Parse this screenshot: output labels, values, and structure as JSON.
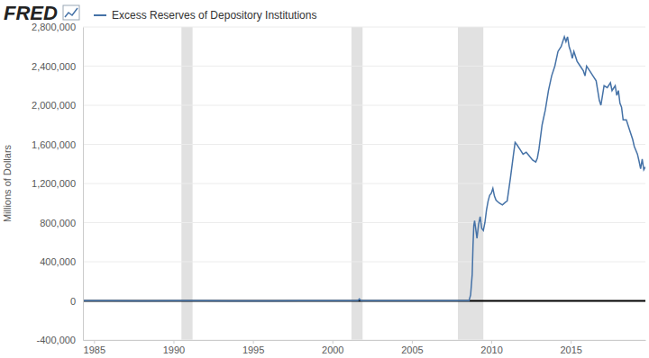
{
  "chart_data": {
    "type": "line",
    "logo": "FRED",
    "y_label": "Millions of Dollars",
    "grid": true,
    "xlim": [
      1984.3,
      2019.7
    ],
    "xticks": [
      1985,
      1990,
      1995,
      2000,
      2005,
      2010,
      2015
    ],
    "ylim": [
      -400000,
      2800000
    ],
    "yticks": [
      {
        "value": -400000,
        "label": "-400,000"
      },
      0,
      {
        "value": 400000,
        "label": "400,000"
      },
      {
        "value": 800000,
        "label": "800,000"
      },
      {
        "value": 1200000,
        "label": "1,200,000"
      },
      {
        "value": 1600000,
        "label": "1,600,000"
      },
      {
        "value": 2000000,
        "label": "2,000,000"
      },
      {
        "value": 2400000,
        "label": "2,400,000"
      },
      {
        "value": 2800000,
        "label": "2,800,000"
      }
    ],
    "recessions": [
      {
        "start": 1990.5,
        "end": 1991.2
      },
      {
        "start": 2001.2,
        "end": 2001.9
      },
      {
        "start": 2007.9,
        "end": 2009.5
      }
    ],
    "x": [
      1984.3,
      1986,
      1988,
      1990,
      1992,
      1994,
      1996,
      1998,
      2000,
      2001.6,
      2001.7,
      2001.8,
      2003,
      2005,
      2007,
      2008.6,
      2008.7,
      2008.8,
      2008.85,
      2008.9,
      2008.95,
      2009.0,
      2009.1,
      2009.2,
      2009.3,
      2009.4,
      2009.5,
      2009.6,
      2009.7,
      2009.8,
      2009.9,
      2010.0,
      2010.1,
      2010.2,
      2010.3,
      2010.5,
      2010.7,
      2010.9,
      2011.0,
      2011.2,
      2011.4,
      2011.5,
      2011.6,
      2011.8,
      2012.0,
      2012.2,
      2012.4,
      2012.6,
      2012.8,
      2012.9,
      2013.0,
      2013.2,
      2013.4,
      2013.6,
      2013.8,
      2014.0,
      2014.2,
      2014.4,
      2014.6,
      2014.7,
      2014.8,
      2014.9,
      2015.0,
      2015.1,
      2015.2,
      2015.4,
      2015.6,
      2015.8,
      2015.9,
      2016.0,
      2016.2,
      2016.4,
      2016.6,
      2016.8,
      2016.9,
      2017.0,
      2017.1,
      2017.3,
      2017.5,
      2017.6,
      2017.8,
      2017.9,
      2018.0,
      2018.1,
      2018.2,
      2018.3,
      2018.5,
      2018.7,
      2018.9,
      2019.0,
      2019.2,
      2019.3,
      2019.4,
      2019.5,
      2019.6,
      2019.7
    ],
    "series": [
      {
        "name": "Excess Reserves of Depository Institutions",
        "color": "#4572a7",
        "values": [
          1200,
          1500,
          1100,
          1300,
          1200,
          1100,
          1000,
          1300,
          1200,
          1300,
          19000,
          1400,
          1500,
          1600,
          1700,
          2000,
          60000,
          270000,
          560000,
          770000,
          820000,
          760000,
          640000,
          780000,
          860000,
          740000,
          720000,
          800000,
          930000,
          1020000,
          1080000,
          1100000,
          1150000,
          1070000,
          1030000,
          1000000,
          980000,
          1010000,
          1020000,
          1250000,
          1500000,
          1620000,
          1600000,
          1550000,
          1500000,
          1520000,
          1480000,
          1440000,
          1420000,
          1460000,
          1550000,
          1800000,
          1950000,
          2150000,
          2300000,
          2400000,
          2550000,
          2600000,
          2700000,
          2650000,
          2700000,
          2600000,
          2550000,
          2480000,
          2550000,
          2450000,
          2400000,
          2350000,
          2300000,
          2400000,
          2350000,
          2300000,
          2250000,
          2050000,
          2000000,
          2100000,
          2200000,
          2180000,
          2230000,
          2150000,
          2200000,
          2100000,
          2150000,
          2020000,
          1980000,
          1850000,
          1850000,
          1750000,
          1650000,
          1580000,
          1500000,
          1430000,
          1350000,
          1450000,
          1340000,
          1370000
        ]
      }
    ]
  }
}
